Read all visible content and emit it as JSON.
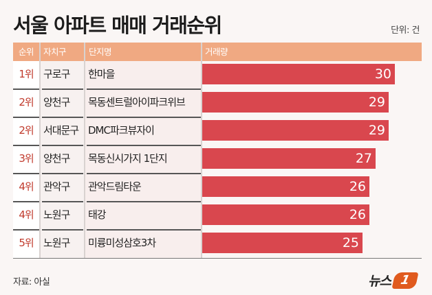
{
  "title": "서울 아파트 매매 거래순위",
  "unit": "단위: 건",
  "columns": {
    "rank": "순위",
    "district": "자치구",
    "complex": "단지명",
    "volume": "거래량"
  },
  "rows": [
    {
      "rank": "1위",
      "district": "구로구",
      "complex": "한마을",
      "value": "30"
    },
    {
      "rank": "2위",
      "district": "양천구",
      "complex": "목동센트럴아이파크위브",
      "value": "29"
    },
    {
      "rank": "2위",
      "district": "서대문구",
      "complex": "DMC파크뷰자이",
      "value": "29"
    },
    {
      "rank": "3위",
      "district": "양천구",
      "complex": "목동신시가지 1단지",
      "value": "27"
    },
    {
      "rank": "4위",
      "district": "관악구",
      "complex": "관악드림타운",
      "value": "26"
    },
    {
      "rank": "4위",
      "district": "노원구",
      "complex": "태강",
      "value": "26"
    },
    {
      "rank": "5위",
      "district": "노원구",
      "complex": "미륭미성삼호3차",
      "value": "25"
    }
  ],
  "footer": {
    "source": "자료: 아실"
  },
  "logo": {
    "text": "뉴스",
    "badge": "1"
  },
  "colors": {
    "header": "#f0a982",
    "bar": "#d9474e",
    "rank_text": "#c0392b",
    "logo": "#e05a1e"
  },
  "chart_data": {
    "type": "bar",
    "orientation": "horizontal",
    "title": "서울 아파트 매매 거래순위",
    "unit": "건",
    "categories": [
      "한마을",
      "목동센트럴아이파크위브",
      "DMC파크뷰자이",
      "목동신시가지 1단지",
      "관악드림타운",
      "태강",
      "미륭미성삼호3차"
    ],
    "districts": [
      "구로구",
      "양천구",
      "서대문구",
      "양천구",
      "관악구",
      "노원구",
      "노원구"
    ],
    "ranks": [
      "1위",
      "2위",
      "2위",
      "3위",
      "4위",
      "4위",
      "5위"
    ],
    "values": [
      30,
      29,
      29,
      27,
      26,
      26,
      25
    ],
    "xlabel": "거래량",
    "source": "자료: 아실"
  }
}
